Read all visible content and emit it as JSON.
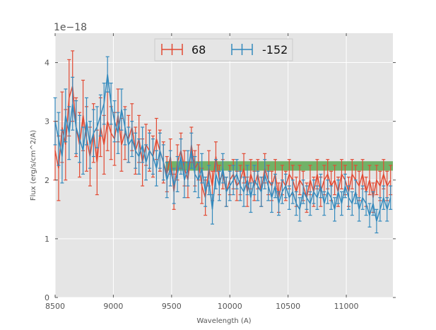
{
  "chart_data": {
    "type": "errorbar-line",
    "title": "",
    "xlabel": "Wavelength (A)",
    "ylabel": "Flux (erg/s/cm^2/A)",
    "xlim": [
      8500,
      11400
    ],
    "ylim": [
      0,
      4.5
    ],
    "y_scale_label": "1e−18",
    "x_ticks": [
      8500,
      9000,
      9500,
      10000,
      10500,
      11000
    ],
    "x_tick_labels": [
      "8500",
      "9000",
      "9500",
      "10000",
      "10500",
      "11000"
    ],
    "y_ticks": [
      0,
      1,
      2,
      3,
      4
    ],
    "y_tick_labels": [
      "0",
      "1",
      "2",
      "3",
      "4"
    ],
    "grid": true,
    "legend": {
      "placement": "top-center",
      "entries": [
        "68",
        "-152"
      ]
    },
    "band": {
      "x_start": 9450,
      "x_end": 11400,
      "y_low": 2.16,
      "y_high": 2.32,
      "color": "#4aa03c"
    },
    "series": [
      {
        "name": "68",
        "color": "#e24a33",
        "x": [
          8500,
          8530,
          8560,
          8590,
          8620,
          8650,
          8680,
          8710,
          8740,
          8770,
          8800,
          8830,
          8860,
          8890,
          8920,
          8950,
          8980,
          9010,
          9040,
          9070,
          9100,
          9130,
          9160,
          9190,
          9220,
          9250,
          9280,
          9310,
          9340,
          9370,
          9400,
          9430,
          9460,
          9490,
          9520,
          9550,
          9580,
          9610,
          9640,
          9670,
          9700,
          9730,
          9760,
          9790,
          9820,
          9850,
          9880,
          9910,
          9940,
          9970,
          10000,
          10030,
          10060,
          10090,
          10120,
          10150,
          10180,
          10210,
          10240,
          10270,
          10300,
          10330,
          10360,
          10390,
          10420,
          10450,
          10480,
          10510,
          10540,
          10570,
          10600,
          10630,
          10660,
          10690,
          10720,
          10750,
          10780,
          10810,
          10840,
          10870,
          10900,
          10930,
          10960,
          10990,
          11020,
          11050,
          11080,
          11110,
          11140,
          11170,
          11200,
          11230,
          11260,
          11290,
          11320,
          11350,
          11380
        ],
        "y": [
          2.5,
          2.2,
          2.9,
          2.6,
          3.4,
          3.6,
          2.9,
          2.6,
          3.1,
          2.7,
          2.4,
          2.8,
          2.3,
          2.9,
          2.6,
          3.0,
          2.8,
          2.7,
          3.1,
          2.6,
          2.8,
          2.7,
          2.9,
          2.5,
          2.7,
          2.3,
          2.6,
          2.5,
          2.4,
          2.7,
          2.5,
          2.3,
          2.1,
          2.4,
          1.8,
          2.3,
          2.5,
          2.2,
          2.0,
          2.6,
          2.2,
          2.3,
          1.9,
          1.7,
          2.2,
          1.9,
          2.4,
          2.0,
          2.1,
          1.8,
          2.0,
          2.1,
          1.9,
          2.0,
          2.2,
          1.8,
          2.1,
          1.9,
          2.1,
          1.8,
          2.2,
          2.0,
          1.9,
          2.1,
          1.7,
          2.0,
          1.9,
          2.1,
          2.0,
          1.8,
          2.0,
          1.9,
          1.7,
          2.0,
          1.8,
          2.1,
          1.8,
          2.0,
          2.1,
          1.9,
          2.0,
          1.8,
          2.1,
          2.0,
          1.8,
          2.1,
          2.0,
          1.9,
          2.1,
          1.8,
          2.0,
          1.7,
          2.0,
          1.9,
          2.1,
          1.9,
          2.0
        ],
        "yerr": [
          0.5,
          0.55,
          0.6,
          0.6,
          0.65,
          0.6,
          0.5,
          0.55,
          0.6,
          0.55,
          0.5,
          0.5,
          0.55,
          0.5,
          0.5,
          0.5,
          0.45,
          0.45,
          0.45,
          0.45,
          0.45,
          0.4,
          0.4,
          0.4,
          0.4,
          0.4,
          0.35,
          0.35,
          0.35,
          0.35,
          0.35,
          0.35,
          0.3,
          0.3,
          0.3,
          0.3,
          0.3,
          0.3,
          0.3,
          0.3,
          0.3,
          0.3,
          0.3,
          0.3,
          0.3,
          0.25,
          0.25,
          0.25,
          0.25,
          0.25,
          0.25,
          0.25,
          0.25,
          0.25,
          0.25,
          0.25,
          0.25,
          0.25,
          0.25,
          0.25,
          0.25,
          0.25,
          0.25,
          0.25,
          0.25,
          0.25,
          0.25,
          0.25,
          0.25,
          0.25,
          0.25,
          0.25,
          0.25,
          0.25,
          0.25,
          0.25,
          0.25,
          0.25,
          0.25,
          0.25,
          0.25,
          0.25,
          0.25,
          0.25,
          0.25,
          0.25,
          0.25,
          0.25,
          0.25,
          0.25,
          0.25,
          0.25,
          0.25,
          0.25,
          0.25,
          0.25,
          0.25
        ]
      },
      {
        "name": "-152",
        "color": "#348abd",
        "x": [
          8500,
          8530,
          8560,
          8590,
          8620,
          8650,
          8680,
          8710,
          8740,
          8770,
          8800,
          8830,
          8860,
          8890,
          8920,
          8950,
          8980,
          9010,
          9040,
          9070,
          9100,
          9130,
          9160,
          9190,
          9220,
          9250,
          9280,
          9310,
          9340,
          9370,
          9400,
          9430,
          9460,
          9490,
          9520,
          9550,
          9580,
          9610,
          9640,
          9670,
          9700,
          9730,
          9760,
          9790,
          9820,
          9850,
          9880,
          9910,
          9940,
          9970,
          10000,
          10030,
          10060,
          10090,
          10120,
          10150,
          10180,
          10210,
          10240,
          10270,
          10300,
          10330,
          10360,
          10390,
          10420,
          10450,
          10480,
          10510,
          10540,
          10570,
          10600,
          10630,
          10660,
          10690,
          10720,
          10750,
          10780,
          10810,
          10840,
          10870,
          10900,
          10930,
          10960,
          10990,
          11020,
          11050,
          11080,
          11110,
          11140,
          11170,
          11200,
          11230,
          11260,
          11290,
          11320,
          11350,
          11380
        ],
        "y": [
          3.0,
          2.7,
          2.4,
          3.1,
          2.8,
          3.3,
          2.9,
          2.7,
          2.5,
          3.0,
          2.6,
          2.8,
          2.9,
          3.1,
          3.3,
          3.8,
          3.3,
          3.0,
          2.8,
          3.2,
          2.9,
          2.6,
          2.7,
          2.5,
          2.4,
          2.6,
          2.3,
          2.5,
          2.4,
          2.2,
          2.5,
          2.3,
          2.0,
          2.2,
          1.9,
          2.1,
          2.4,
          2.0,
          2.2,
          2.5,
          2.1,
          2.0,
          2.2,
          1.8,
          2.0,
          1.5,
          2.1,
          1.9,
          2.2,
          1.8,
          1.9,
          2.0,
          2.1,
          1.9,
          1.8,
          2.0,
          1.7,
          2.0,
          1.9,
          1.8,
          2.1,
          1.9,
          1.7,
          1.9,
          1.6,
          1.8,
          1.9,
          1.7,
          1.8,
          1.6,
          1.5,
          1.8,
          1.7,
          1.6,
          1.8,
          1.7,
          1.9,
          1.6,
          1.8,
          1.7,
          1.5,
          1.8,
          1.6,
          1.9,
          1.7,
          1.6,
          1.8,
          1.5,
          1.7,
          1.6,
          1.4,
          1.6,
          1.3,
          1.5,
          1.7,
          1.5,
          1.7
        ],
        "yerr": [
          0.4,
          0.45,
          0.45,
          0.45,
          0.45,
          0.45,
          0.45,
          0.4,
          0.4,
          0.4,
          0.4,
          0.4,
          0.35,
          0.35,
          0.35,
          0.3,
          0.35,
          0.35,
          0.35,
          0.35,
          0.3,
          0.3,
          0.3,
          0.3,
          0.3,
          0.3,
          0.3,
          0.3,
          0.3,
          0.3,
          0.3,
          0.3,
          0.3,
          0.3,
          0.3,
          0.3,
          0.3,
          0.3,
          0.3,
          0.3,
          0.3,
          0.3,
          0.25,
          0.25,
          0.25,
          0.25,
          0.25,
          0.25,
          0.25,
          0.25,
          0.25,
          0.25,
          0.25,
          0.25,
          0.25,
          0.25,
          0.25,
          0.25,
          0.25,
          0.25,
          0.25,
          0.25,
          0.25,
          0.2,
          0.2,
          0.2,
          0.2,
          0.2,
          0.2,
          0.2,
          0.2,
          0.2,
          0.2,
          0.2,
          0.2,
          0.2,
          0.2,
          0.2,
          0.2,
          0.2,
          0.2,
          0.2,
          0.2,
          0.2,
          0.2,
          0.2,
          0.2,
          0.2,
          0.2,
          0.2,
          0.2,
          0.2,
          0.2,
          0.2,
          0.2,
          0.2,
          0.2
        ]
      }
    ]
  }
}
